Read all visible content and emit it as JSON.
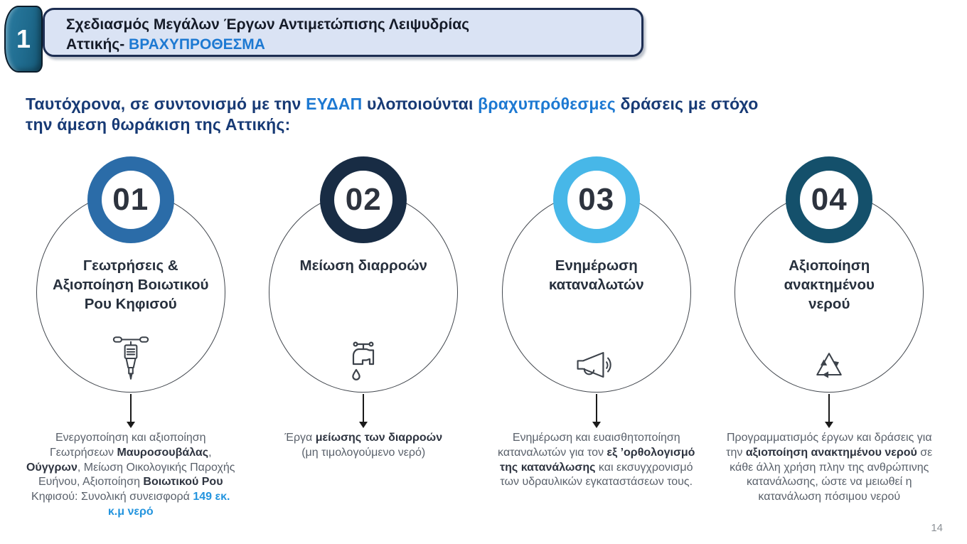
{
  "slide": {
    "header": {
      "badge_number": "1",
      "title_line1": "Σχεδιασμός Μεγάλων Έργων Αντιμετώπισης Λειψυδρίας",
      "title_line2": [
        {
          "text": "Αττικής- ",
          "style": "dark"
        },
        {
          "text": "ΒΡΑΧΥΠΡΟΘΕΣΜΑ",
          "style": "accent"
        }
      ]
    },
    "intro": {
      "line1": [
        {
          "text": "Ταυτόχρονα, σε συντονισμό με την ",
          "style": "dark"
        },
        {
          "text": "ΕΥΔΑΠ",
          "style": "accent"
        },
        {
          "text": " υλοποιούνται ",
          "style": "dark"
        },
        {
          "text": "βραχυπρόθεσμες",
          "style": "accent"
        },
        {
          "text": " δράσεις με στόχο",
          "style": "dark"
        }
      ],
      "line2": [
        {
          "text": "την άμεση θωράκιση της Αττικής:",
          "style": "dark"
        }
      ]
    },
    "steps": [
      {
        "number": "01",
        "ring_color": "#2b6ca8",
        "title": "Γεωτρήσεις &\nΑξιοποίηση Βοιωτικού\nΡου Κηφισού",
        "icon": "jackhammer-icon",
        "description_segments": [
          {
            "text": "Ενεργοποίηση και αξιοποίηση Γεωτρήσεων ",
            "style": "normal"
          },
          {
            "text": "Μαυροσουβάλας",
            "style": "bold"
          },
          {
            "text": ", ",
            "style": "normal"
          },
          {
            "text": "Ούγγρων",
            "style": "bold"
          },
          {
            "text": ", Μείωση Οικολογικής Παροχής Ευήνου, Αξιοποίηση ",
            "style": "normal"
          },
          {
            "text": "Βοιωτικού Ρου",
            "style": "bold"
          },
          {
            "text": " Κηφισού: Συνολική συνεισφορά ",
            "style": "normal"
          },
          {
            "text": "149 εκ. κ.μ νερό",
            "style": "accent"
          }
        ]
      },
      {
        "number": "02",
        "ring_color": "#182c44",
        "title": "Μείωση διαρροών",
        "icon": "faucet-icon",
        "description_segments": [
          {
            "text": "Έργα ",
            "style": "normal"
          },
          {
            "text": "μείωσης των διαρροών",
            "style": "bold"
          },
          {
            "text": "\n(μη τιμολογούμενο νερό)",
            "style": "normal"
          }
        ]
      },
      {
        "number": "03",
        "ring_color": "#47b7e8",
        "title": "Ενημέρωση\nκαταναλωτών",
        "icon": "megaphone-icon",
        "description_segments": [
          {
            "text": "Ενημέρωση και ευαισθητοποίηση καταναλωτών για τον ",
            "style": "normal"
          },
          {
            "text": "εξ ’ορθολογισμό της κατανάλωσης",
            "style": "bold"
          },
          {
            "text": " και εκσυγχρονισμό των υδραυλικών εγκαταστάσεων τους.",
            "style": "normal"
          }
        ]
      },
      {
        "number": "04",
        "ring_color": "#14506b",
        "title": "Αξιοποίηση\nανακτημένου\nνερού",
        "icon": "recycle-icon",
        "description_segments": [
          {
            "text": "Προγραμματισμός έργων και δράσεις για την ",
            "style": "normal"
          },
          {
            "text": "αξιοποίηση ανακτημένου νερού",
            "style": "bold"
          },
          {
            "text": " σε κάθε άλλη χρήση πλην της ανθρώπινης κατανάλωσης, ώστε να μειωθεί η κατανάλωση πόσιμου νερού",
            "style": "normal"
          }
        ]
      }
    ],
    "page_number": "14",
    "colors": {
      "accent_blue": "#1d79d2",
      "desc_accent_blue": "#2394de",
      "ring_step1": "#2b6ca8",
      "ring_step2": "#182c44",
      "ring_step3": "#47b7e8",
      "ring_step4": "#14506b",
      "header_box_bg": "#dae3f4",
      "header_box_border": "#1d2e52",
      "badge_bg": "#1f6b8e",
      "intro_text_navy": "#173a75"
    }
  }
}
